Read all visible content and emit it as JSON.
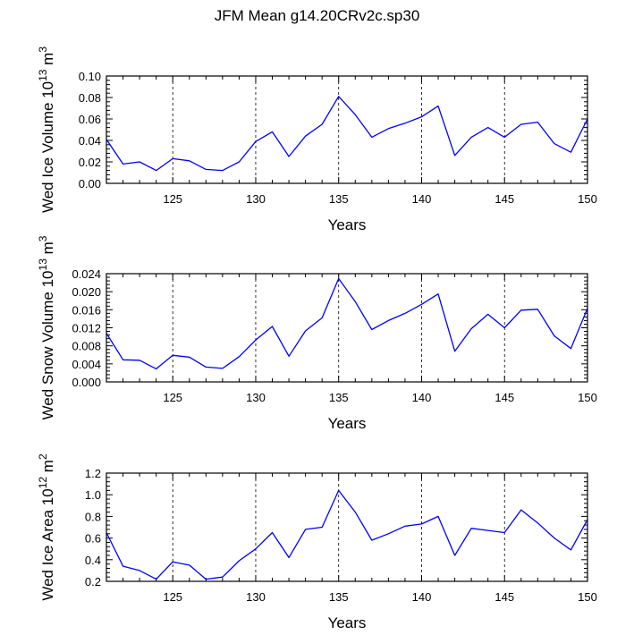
{
  "title": "JFM Mean g14.20CRv2c.sp30",
  "chart_data": [
    {
      "type": "line",
      "title": "JFM Mean g14.20CRv2c.sp30",
      "xlabel": "Years",
      "ylabel": "Wed Ice Volume 10",
      "ylabel_exp": "13",
      "ylabel_unit": " m",
      "ylabel_unit_exp": "3",
      "xlim": [
        121,
        150
      ],
      "ylim": [
        0.0,
        0.1
      ],
      "xticks": [
        125,
        130,
        135,
        140,
        145,
        150
      ],
      "xtick_labels": [
        "125",
        "130",
        "135",
        "140",
        "145",
        "150"
      ],
      "yticks": [
        0.0,
        0.02,
        0.04,
        0.06,
        0.08,
        0.1
      ],
      "ytick_labels": [
        "0.00",
        "0.02",
        "0.04",
        "0.06",
        "0.08",
        "0.10"
      ],
      "vlines": [
        125,
        130,
        135,
        140,
        145
      ],
      "x": [
        121,
        122,
        123,
        124,
        125,
        126,
        127,
        128,
        129,
        130,
        131,
        132,
        133,
        134,
        135,
        136,
        137,
        138,
        139,
        140,
        141,
        142,
        143,
        144,
        145,
        146,
        147,
        148,
        149,
        150
      ],
      "series": [
        {
          "name": "Wed Ice Volume",
          "color": "#0000ff",
          "values": [
            0.041,
            0.018,
            0.02,
            0.012,
            0.023,
            0.021,
            0.013,
            0.012,
            0.02,
            0.039,
            0.048,
            0.025,
            0.044,
            0.055,
            0.081,
            0.064,
            0.043,
            0.051,
            0.056,
            0.062,
            0.072,
            0.026,
            0.043,
            0.052,
            0.043,
            0.055,
            0.057,
            0.037,
            0.029,
            0.06
          ]
        }
      ]
    },
    {
      "type": "line",
      "xlabel": "Years",
      "ylabel": "Wed Snow Volume 10",
      "ylabel_exp": "13",
      "ylabel_unit": " m",
      "ylabel_unit_exp": "3",
      "xlim": [
        121,
        150
      ],
      "ylim": [
        0.0,
        0.024
      ],
      "xticks": [
        125,
        130,
        135,
        140,
        145,
        150
      ],
      "xtick_labels": [
        "125",
        "130",
        "135",
        "140",
        "145",
        "150"
      ],
      "yticks": [
        0.0,
        0.004,
        0.008,
        0.012,
        0.016,
        0.02,
        0.024
      ],
      "ytick_labels": [
        "0.000",
        "0.004",
        "0.008",
        "0.012",
        "0.016",
        "0.020",
        "0.024"
      ],
      "vlines": [
        125,
        130,
        135,
        140,
        145
      ],
      "x": [
        121,
        122,
        123,
        124,
        125,
        126,
        127,
        128,
        129,
        130,
        131,
        132,
        133,
        134,
        135,
        136,
        137,
        138,
        139,
        140,
        141,
        142,
        143,
        144,
        145,
        146,
        147,
        148,
        149,
        150
      ],
      "series": [
        {
          "name": "Wed Snow Volume",
          "color": "#0000ff",
          "values": [
            0.0108,
            0.0049,
            0.0048,
            0.0029,
            0.0059,
            0.0055,
            0.0033,
            0.003,
            0.0056,
            0.0093,
            0.0123,
            0.0057,
            0.0113,
            0.0142,
            0.0229,
            0.0178,
            0.0116,
            0.0136,
            0.0152,
            0.0172,
            0.0195,
            0.0068,
            0.0118,
            0.015,
            0.012,
            0.0159,
            0.0161,
            0.0102,
            0.0074,
            0.0163
          ]
        }
      ]
    },
    {
      "type": "line",
      "xlabel": "Years",
      "ylabel": "Wed Ice Area 10",
      "ylabel_exp": "12",
      "ylabel_unit": " m",
      "ylabel_unit_exp": "2",
      "xlim": [
        121,
        150
      ],
      "ylim": [
        0.2,
        1.2
      ],
      "xticks": [
        125,
        130,
        135,
        140,
        145,
        150
      ],
      "xtick_labels": [
        "125",
        "130",
        "135",
        "140",
        "145",
        "150"
      ],
      "yticks": [
        0.2,
        0.4,
        0.6,
        0.8,
        1.0,
        1.2
      ],
      "ytick_labels": [
        "0.2",
        "0.4",
        "0.6",
        "0.8",
        "1.0",
        "1.2"
      ],
      "vlines": [
        125,
        130,
        135,
        140,
        145
      ],
      "x": [
        121,
        122,
        123,
        124,
        125,
        126,
        127,
        128,
        129,
        130,
        131,
        132,
        133,
        134,
        135,
        136,
        137,
        138,
        139,
        140,
        141,
        142,
        143,
        144,
        145,
        146,
        147,
        148,
        149,
        150
      ],
      "series": [
        {
          "name": "Wed Ice Area",
          "color": "#0000ff",
          "values": [
            0.65,
            0.34,
            0.3,
            0.22,
            0.38,
            0.35,
            0.22,
            0.24,
            0.39,
            0.5,
            0.65,
            0.42,
            0.68,
            0.7,
            1.04,
            0.84,
            0.58,
            0.64,
            0.71,
            0.73,
            0.8,
            0.44,
            0.69,
            0.67,
            0.65,
            0.86,
            0.74,
            0.6,
            0.49,
            0.77
          ]
        }
      ]
    }
  ]
}
